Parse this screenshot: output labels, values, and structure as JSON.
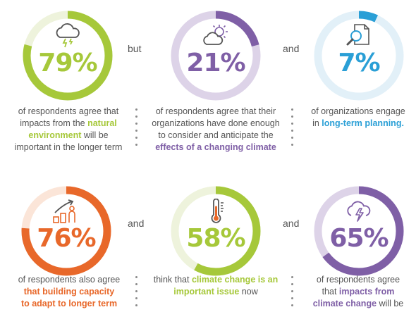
{
  "colors": {
    "green": "#a6c83a",
    "purple": "#7f5fa6",
    "blue": "#2a9fd6",
    "orange": "#e8682a",
    "text": "#555555"
  },
  "connectors": {
    "row1_a": "but",
    "row1_b": "and",
    "row2_a": "and",
    "row2_b": "and"
  },
  "stats": [
    {
      "percent": 79,
      "label": "79%",
      "icon": "storm-cloud-icon",
      "color": "#a6c83a",
      "track": "#eef3dc",
      "caption": {
        "line1": "of respondents agree that",
        "line2a": "impacts from the ",
        "line2b": "natural",
        "line3a": "environment",
        "line3b": " will be",
        "line4": "important in the longer term"
      }
    },
    {
      "percent": 21,
      "label": "21%",
      "icon": "sun-cloud-icon",
      "color": "#7f5fa6",
      "track": "#ddd3e8",
      "caption": {
        "line1": "of respondents agree that their",
        "line2": "organizations have done enough",
        "line3": "to consider and anticipate the",
        "line4": "effects of a changing climate"
      }
    },
    {
      "percent": 7,
      "label": "7%",
      "icon": "document-search-icon",
      "color": "#2a9fd6",
      "track": "#e2f0f8",
      "caption": {
        "line1": "of organizations engage",
        "line2a": "in ",
        "line2b": "long-term planning."
      }
    },
    {
      "percent": 76,
      "label": "76%",
      "icon": "growth-people-icon",
      "color": "#e8682a",
      "track": "#fbe5d8",
      "caption": {
        "line1": "of respondents also agree",
        "line2": "that building capacity",
        "line3": "to adapt to longer term"
      }
    },
    {
      "percent": 58,
      "label": "58%",
      "icon": "thermometer-icon",
      "color": "#a6c83a",
      "track": "#eef3dc",
      "caption": {
        "line1a": "think that ",
        "line1b": "climate change is an",
        "line2a": "important issue",
        "line2b": " now"
      }
    },
    {
      "percent": 65,
      "label": "65%",
      "icon": "storm-lightning-icon",
      "color": "#7f5fa6",
      "track": "#ddd3e8",
      "caption": {
        "line1": "of respondents agree",
        "line2a": "that ",
        "line2b": "impacts from",
        "line3a": "climate change",
        "line3b": " will be"
      }
    }
  ]
}
